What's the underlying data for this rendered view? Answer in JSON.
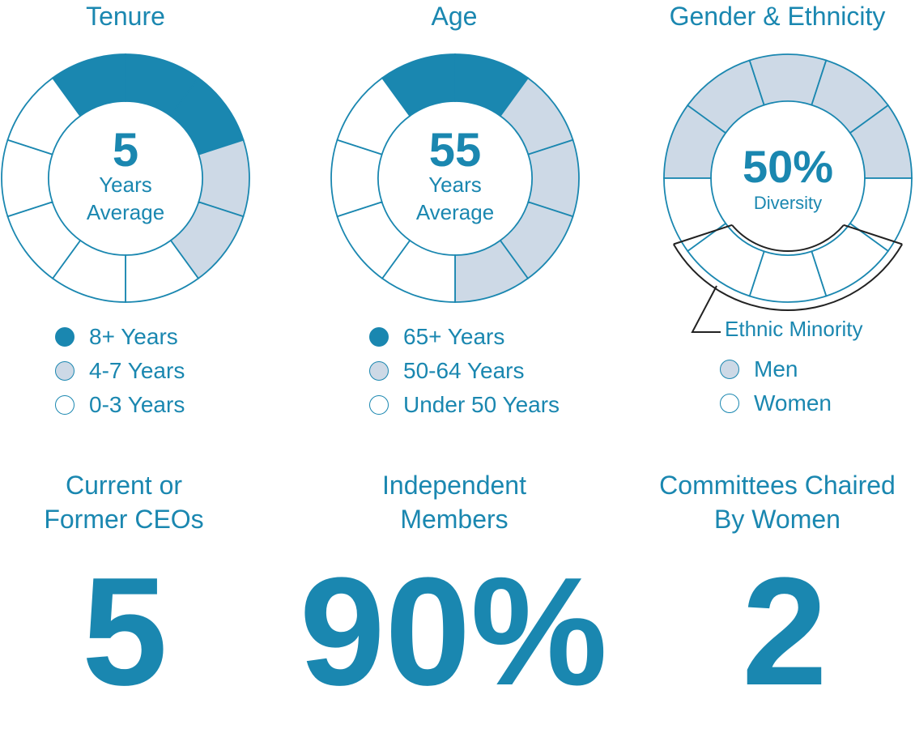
{
  "colors": {
    "dark": "#1a87b0",
    "light": "#cdd9e6",
    "empty": "#ffffff",
    "stroke": "#1a87b0",
    "bracket": "#222222"
  },
  "chart_data": [
    {
      "type": "pie",
      "title": "Tenure",
      "center_value": "5",
      "center_lines": [
        "Years",
        "Average"
      ],
      "segments_total": 10,
      "series": [
        {
          "name": "8+ Years",
          "values": [
            3
          ],
          "color": "dark"
        },
        {
          "name": "4-7 Years",
          "values": [
            2
          ],
          "color": "light"
        },
        {
          "name": "0-3 Years",
          "values": [
            5
          ],
          "color": "empty"
        }
      ]
    },
    {
      "type": "pie",
      "title": "Age",
      "center_value": "55",
      "center_lines": [
        "Years",
        "Average"
      ],
      "segments_total": 10,
      "series": [
        {
          "name": "65+ Years",
          "values": [
            2
          ],
          "color": "dark"
        },
        {
          "name": "50-64 Years",
          "values": [
            4
          ],
          "color": "light"
        },
        {
          "name": "Under 50 Years",
          "values": [
            4
          ],
          "color": "empty"
        }
      ]
    },
    {
      "type": "pie",
      "title": "Gender & Ethnicity",
      "center_value": "50%",
      "center_lines": [
        "Diversity"
      ],
      "segments_total": 10,
      "series": [
        {
          "name": "Men",
          "values": [
            5
          ],
          "color": "light"
        },
        {
          "name": "Women",
          "values": [
            5
          ],
          "color": "empty"
        }
      ],
      "annotation": "Ethnic Minority",
      "annotation_segments": 3
    }
  ],
  "stats": [
    {
      "label_lines": [
        "Current or",
        "Former CEOs"
      ],
      "value": "5"
    },
    {
      "label_lines": [
        "Independent",
        "Members"
      ],
      "value": "90%"
    },
    {
      "label_lines": [
        "Committees Chaired",
        "By Women"
      ],
      "value": "2"
    }
  ]
}
